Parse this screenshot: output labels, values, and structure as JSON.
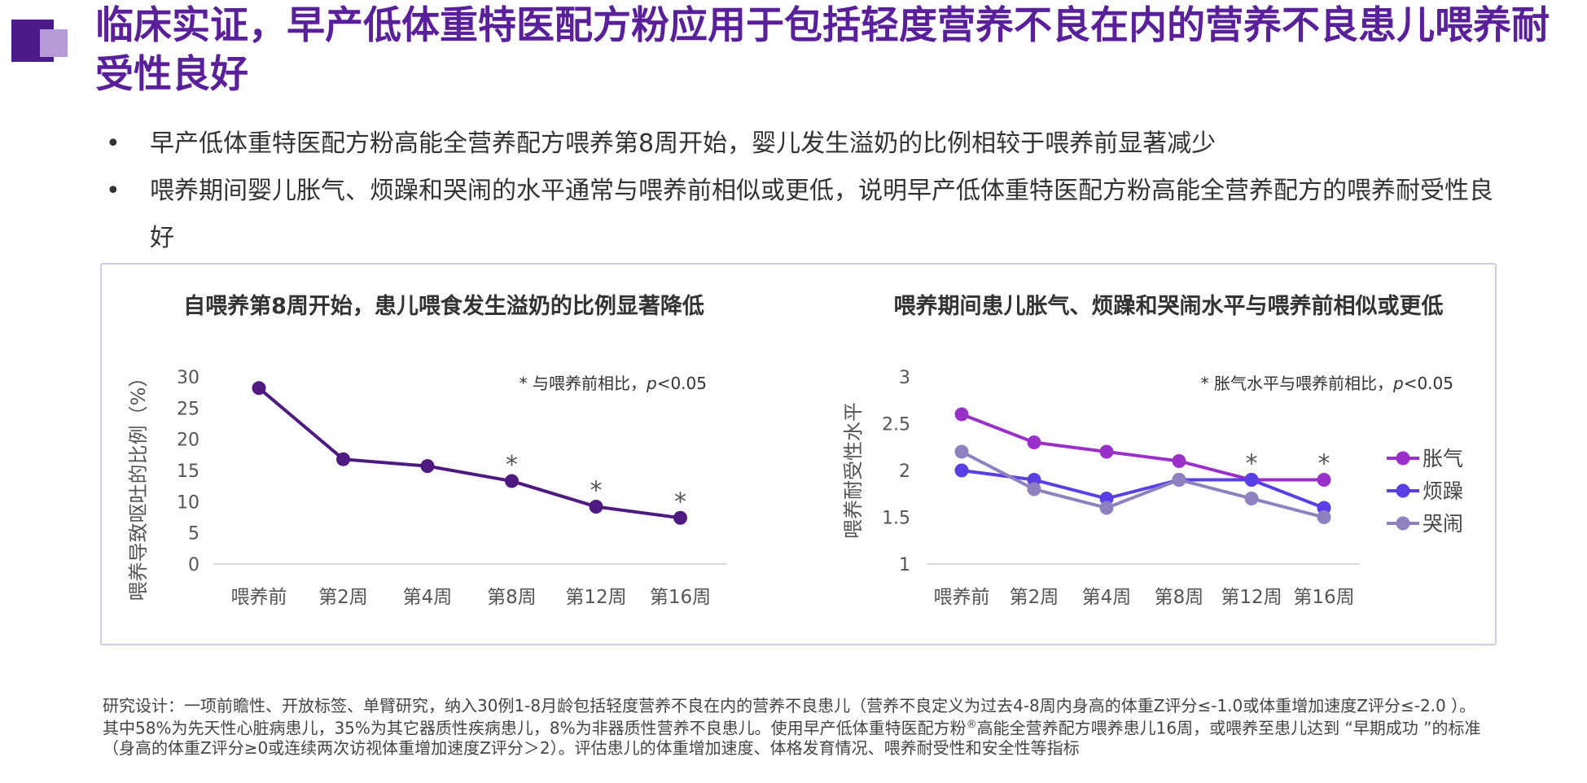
{
  "slide": {
    "title": "临床实证，早产低体重特医配方粉应用于包括轻度营养不良在内的营养不良患儿喂养耐受性良好",
    "bullets": [
      "早产低体重特医配方粉高能全营养配方喂养第8周开始，婴儿发生溢奶的比例相较于喂养前显著减少",
      "喂养期间婴儿胀气、烦躁和哭闹的水平通常与喂养前相似或更低，说明早产低体重特医配方粉高能全营养配方的喂养耐受性良好"
    ],
    "bullet_marker": "•",
    "footnote_part1": "研究设计：一项前瞻性、开放标签、单臂研究，纳入30例1-8月龄包括轻度营养不良在内的营养不良患儿（营养不良定义为过去4-8周内身高的体重Z评分≤-1.0或体重增加速度Z评分≤-2.0 ）。其中58%为先天性心脏病患儿，35%为其它器质性疾病患儿，8%为非器质性营养不良患儿。使用早产低体重特医配方粉",
    "footnote_sup": "®",
    "footnote_part2": "高能全营养配方喂养患儿16周，或喂养至患儿达到 “早期成功 ”的标准（身高的体重Z评分≥0或连续两次访视体重增加速度Z评分＞2）。评估患儿的体重增加速度、体格发育情况、喂养耐受性和安全性等指标",
    "colors": {
      "title": "#5a1f9a",
      "logo_dark": "#4b1a8a",
      "logo_light": "#b79ad6",
      "panel_border": "#d6c9e8"
    }
  },
  "chart_data": [
    {
      "type": "line",
      "title": "自喂养第8周开始，患儿喂食发生溢奶的比例显著降低",
      "ylabel": "喂养导致呕吐的比例（%）",
      "xlabel": "",
      "categories": [
        "喂养前",
        "第2周",
        "第4周",
        "第8周",
        "第12周",
        "第16周"
      ],
      "ylim": [
        0,
        30
      ],
      "yticks": [
        "0",
        "5",
        "10",
        "15",
        "20",
        "25",
        "30"
      ],
      "series": [
        {
          "values": [
            28.2,
            16.8,
            15.7,
            13.3,
            9.2,
            7.4
          ],
          "color": "#4f1a7f"
        }
      ],
      "significance_markers": [
        "",
        "",
        "",
        "*",
        "*",
        "*"
      ],
      "annotation_prefix": "* 与喂养前相比，",
      "annotation_p": "p",
      "annotation_suffix": "<0.05",
      "grid": false
    },
    {
      "type": "line",
      "title": "喂养期间患儿胀气、烦躁和哭闹水平与喂养前相似或更低",
      "ylabel": "喂养耐受性水平",
      "xlabel": "",
      "categories": [
        "喂养前",
        "第2周",
        "第4周",
        "第8周",
        "第12周",
        "第16周"
      ],
      "ylim": [
        1,
        3
      ],
      "yticks": [
        "1",
        "1.5",
        "2",
        "2.5",
        "3"
      ],
      "series": [
        {
          "name": "胀气",
          "values": [
            2.6,
            2.3,
            2.2,
            2.1,
            1.9,
            1.9
          ],
          "color": "#9b2fc9"
        },
        {
          "name": "烦躁",
          "values": [
            2.0,
            1.9,
            1.7,
            1.9,
            1.9,
            1.6
          ],
          "color": "#5a3ee6"
        },
        {
          "name": "哭闹",
          "values": [
            2.2,
            1.8,
            1.6,
            1.9,
            1.7,
            1.5
          ],
          "color": "#8f80c0"
        }
      ],
      "significance_markers": [
        "",
        "",
        "",
        "",
        "*",
        "*"
      ],
      "annotation_prefix": "* 胀气水平与喂养前相比，",
      "annotation_p": "p",
      "annotation_suffix": "<0.05",
      "legend": "right",
      "grid": false
    }
  ]
}
